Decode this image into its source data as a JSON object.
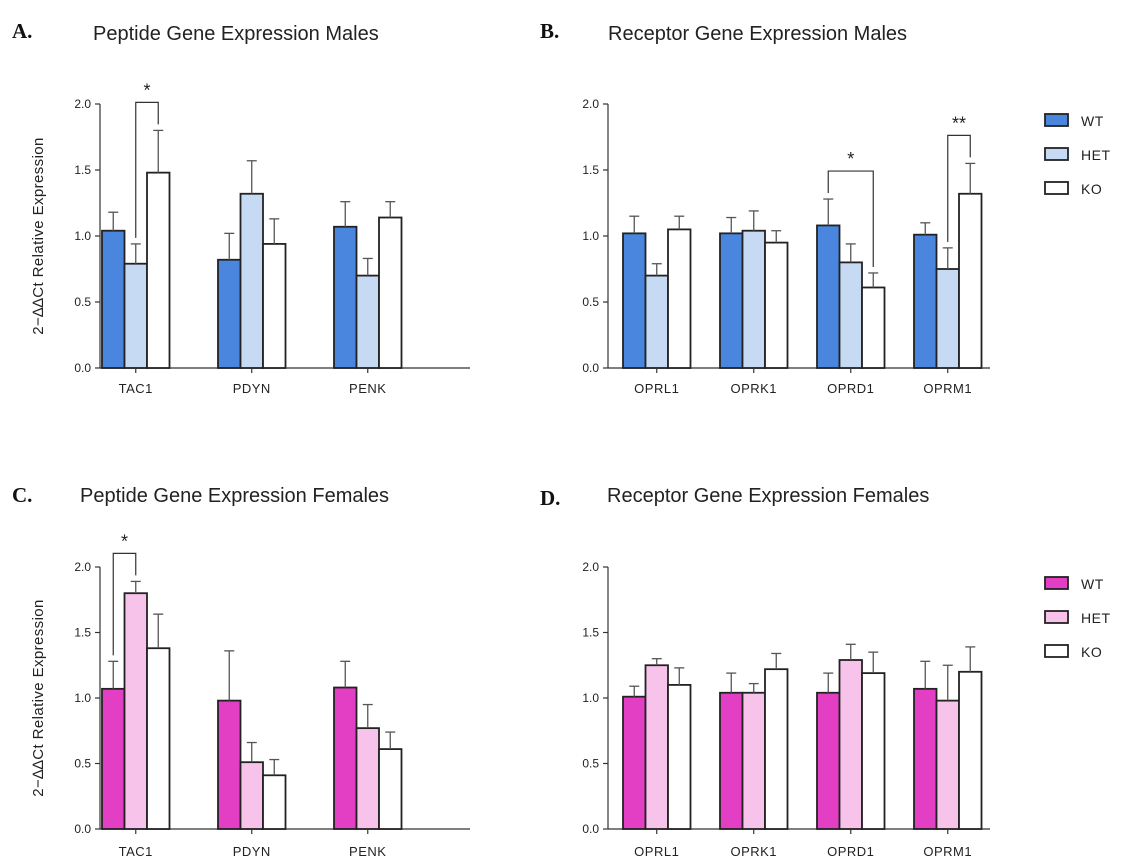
{
  "chart_data": [
    {
      "panel": "A.",
      "type": "bar",
      "title": "Peptide Gene Expression Males",
      "ylabel": "2−∆∆Ct Relative Expression",
      "ylim": [
        0,
        2.0
      ],
      "yticks": [
        "0.0",
        "0.5",
        "1.0",
        "1.5",
        "2.0"
      ],
      "categories": [
        "TAC1",
        "PDYN",
        "PENK"
      ],
      "series": [
        {
          "name": "WT",
          "color": "#4a86dd",
          "values": [
            1.04,
            0.82,
            1.07
          ],
          "errors": [
            0.14,
            0.2,
            0.19
          ]
        },
        {
          "name": "HET",
          "color": "#c6dbf3",
          "values": [
            0.79,
            1.32,
            0.7
          ],
          "errors": [
            0.15,
            0.25,
            0.13
          ]
        },
        {
          "name": "KO",
          "color": "#ffffff",
          "values": [
            1.48,
            0.94,
            1.14
          ],
          "errors": [
            0.32,
            0.19,
            0.12
          ]
        }
      ],
      "annotations": [
        {
          "category": 0,
          "from": 1,
          "to": 2,
          "label": "*"
        }
      ]
    },
    {
      "panel": "B.",
      "type": "bar",
      "title": "Receptor Gene Expression Males",
      "ylabel": "",
      "ylim": [
        0,
        2.0
      ],
      "yticks": [
        "0.0",
        "0.5",
        "1.0",
        "1.5",
        "2.0"
      ],
      "categories": [
        "OPRL1",
        "OPRK1",
        "OPRD1",
        "OPRM1"
      ],
      "series": [
        {
          "name": "WT",
          "color": "#4a86dd",
          "values": [
            1.02,
            1.02,
            1.08,
            1.01
          ],
          "errors": [
            0.13,
            0.12,
            0.2,
            0.09
          ]
        },
        {
          "name": "HET",
          "color": "#c6dbf3",
          "values": [
            0.7,
            1.04,
            0.8,
            0.75
          ],
          "errors": [
            0.09,
            0.15,
            0.14,
            0.16
          ]
        },
        {
          "name": "KO",
          "color": "#ffffff",
          "values": [
            1.05,
            0.95,
            0.61,
            1.32
          ],
          "errors": [
            0.1,
            0.09,
            0.11,
            0.23
          ]
        }
      ],
      "annotations": [
        {
          "category": 2,
          "from": 0,
          "to": 2,
          "label": "*"
        },
        {
          "category": 3,
          "from": 1,
          "to": 2,
          "label": "**"
        }
      ],
      "legend": {
        "placement": "right",
        "entries": [
          "WT",
          "HET",
          "KO"
        ]
      }
    },
    {
      "panel": "C.",
      "type": "bar",
      "title": "Peptide Gene Expression Females",
      "ylabel": "2−∆∆Ct Relative Expression",
      "ylim": [
        0,
        2.0
      ],
      "yticks": [
        "0.0",
        "0.5",
        "1.0",
        "1.5",
        "2.0"
      ],
      "categories": [
        "TAC1",
        "PDYN",
        "PENK"
      ],
      "series": [
        {
          "name": "WT",
          "color": "#e23fc5",
          "values": [
            1.07,
            0.98,
            1.08
          ],
          "errors": [
            0.21,
            0.38,
            0.2
          ]
        },
        {
          "name": "HET",
          "color": "#f8c3ea",
          "values": [
            1.8,
            0.51,
            0.77
          ],
          "errors": [
            0.09,
            0.15,
            0.18
          ]
        },
        {
          "name": "KO",
          "color": "#ffffff",
          "values": [
            1.38,
            0.41,
            0.61
          ],
          "errors": [
            0.26,
            0.12,
            0.13
          ]
        }
      ],
      "annotations": [
        {
          "category": 0,
          "from": 0,
          "to": 1,
          "label": "*"
        }
      ]
    },
    {
      "panel": "D.",
      "type": "bar",
      "title": "Receptor Gene Expression Females",
      "ylabel": "",
      "ylim": [
        0,
        2.0
      ],
      "yticks": [
        "0.0",
        "0.5",
        "1.0",
        "1.5",
        "2.0"
      ],
      "categories": [
        "OPRL1",
        "OPRK1",
        "OPRD1",
        "OPRM1"
      ],
      "series": [
        {
          "name": "WT",
          "color": "#e23fc5",
          "values": [
            1.01,
            1.04,
            1.04,
            1.07
          ],
          "errors": [
            0.08,
            0.15,
            0.15,
            0.21
          ]
        },
        {
          "name": "HET",
          "color": "#f8c3ea",
          "values": [
            1.25,
            1.04,
            1.29,
            0.98
          ],
          "errors": [
            0.05,
            0.07,
            0.12,
            0.27
          ]
        },
        {
          "name": "KO",
          "color": "#ffffff",
          "values": [
            1.1,
            1.22,
            1.19,
            1.2
          ],
          "errors": [
            0.13,
            0.12,
            0.16,
            0.19
          ]
        }
      ],
      "annotations": [],
      "legend": {
        "placement": "right",
        "entries": [
          "WT",
          "HET",
          "KO"
        ]
      }
    }
  ]
}
